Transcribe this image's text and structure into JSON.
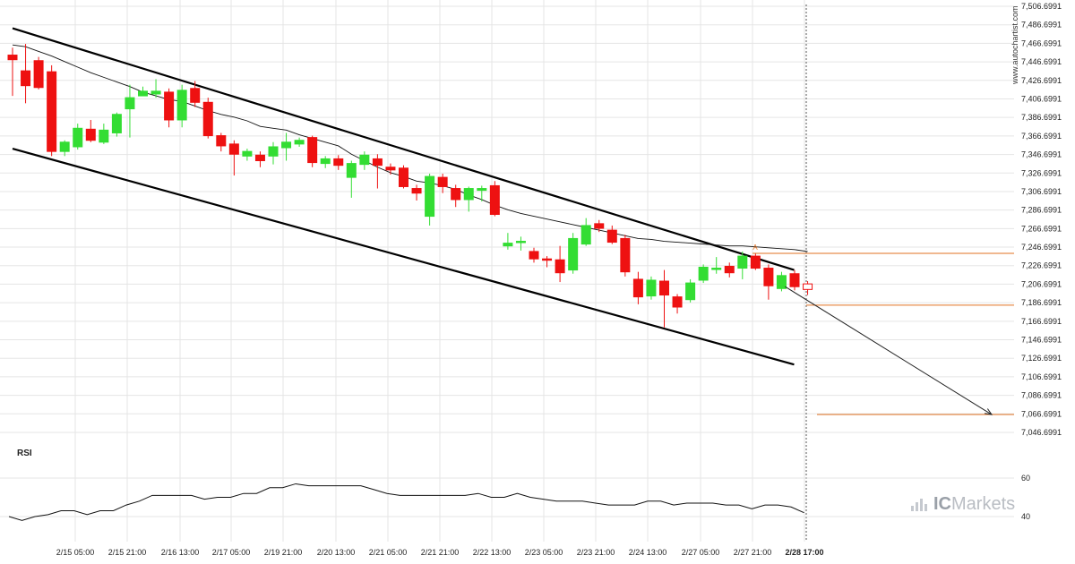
{
  "watermark": "www.autochartist.com",
  "brand": {
    "prefix": "IC",
    "suffix": "Markets"
  },
  "colors": {
    "up": "#33dd33",
    "down": "#ee1111",
    "line": "#000000",
    "level": "#e07020",
    "grid": "#e5e5e5"
  },
  "chart_data": {
    "type": "candlestick",
    "y_ticks": [
      "7,506.6991",
      "7,486.6991",
      "7,466.6991",
      "7,446.6991",
      "7,426.6991",
      "7,406.6991",
      "7,386.6991",
      "7,366.6991",
      "7,346.6991",
      "7,326.6991",
      "7,306.6991",
      "7,286.6991",
      "7,266.6991",
      "7,246.6991",
      "7,226.6991",
      "7,206.6991",
      "7,186.6991",
      "7,166.6991",
      "7,146.6991",
      "7,126.6991",
      "7,106.6991",
      "7,086.6991",
      "7,066.6991",
      "7,046.6991"
    ],
    "ylim": [
      7040,
      7510
    ],
    "x_ticks": [
      "2/15 05:00",
      "2/15 21:00",
      "2/16 13:00",
      "2/17 05:00",
      "2/19 21:00",
      "2/20 13:00",
      "2/21 05:00",
      "2/21 21:00",
      "2/22 13:00",
      "2/23 05:00",
      "2/23 21:00",
      "2/24 13:00",
      "2/27 05:00",
      "2/27 21:00",
      "2/28 17:00"
    ],
    "current_x_tick": "2/28 17:00",
    "candles": [
      [
        7454,
        7449,
        7462,
        7410
      ],
      [
        7437,
        7421,
        7466,
        7402
      ],
      [
        7448,
        7419,
        7452,
        7417
      ],
      [
        7436,
        7350,
        7443,
        7345
      ],
      [
        7350,
        7360,
        7362,
        7345
      ],
      [
        7355,
        7375,
        7380,
        7352
      ],
      [
        7374,
        7362,
        7384,
        7360
      ],
      [
        7360,
        7373,
        7380,
        7358
      ],
      [
        7370,
        7390,
        7392,
        7366
      ],
      [
        7396,
        7408,
        7422,
        7365
      ],
      [
        7410,
        7415,
        7420,
        7412
      ],
      [
        7412,
        7415,
        7428,
        7408
      ],
      [
        7414,
        7384,
        7418,
        7376
      ],
      [
        7384,
        7416,
        7422,
        7376
      ],
      [
        7418,
        7403,
        7426,
        7398
      ],
      [
        7403,
        7367,
        7408,
        7364
      ],
      [
        7367,
        7356,
        7370,
        7350
      ],
      [
        7358,
        7347,
        7362,
        7324
      ],
      [
        7345,
        7350,
        7353,
        7340
      ],
      [
        7346,
        7340,
        7350,
        7333
      ],
      [
        7345,
        7355,
        7360,
        7336
      ],
      [
        7354,
        7360,
        7370,
        7340
      ],
      [
        7358,
        7362,
        7365,
        7355
      ],
      [
        7365,
        7338,
        7367,
        7333
      ],
      [
        7337,
        7342,
        7345,
        7332
      ],
      [
        7342,
        7335,
        7346,
        7330
      ],
      [
        7322,
        7337,
        7340,
        7300
      ],
      [
        7336,
        7346,
        7350,
        7330
      ],
      [
        7342,
        7335,
        7347,
        7310
      ],
      [
        7333,
        7330,
        7337,
        7325
      ],
      [
        7332,
        7312,
        7335,
        7310
      ],
      [
        7310,
        7305,
        7314,
        7297
      ],
      [
        7280,
        7323,
        7326,
        7270
      ],
      [
        7322,
        7312,
        7326,
        7305
      ],
      [
        7310,
        7298,
        7314,
        7290
      ],
      [
        7298,
        7310,
        7312,
        7285
      ],
      [
        7308,
        7310,
        7313,
        7296
      ],
      [
        7313,
        7282,
        7318,
        7280
      ],
      [
        7248,
        7251,
        7262,
        7244
      ],
      [
        7252,
        7253,
        7258,
        7243
      ],
      [
        7242,
        7234,
        7246,
        7230
      ],
      [
        7234,
        7233,
        7237,
        7225
      ],
      [
        7233,
        7219,
        7248,
        7209
      ],
      [
        7222,
        7256,
        7262,
        7218
      ],
      [
        7250,
        7270,
        7278,
        7248
      ],
      [
        7272,
        7267,
        7276,
        7263
      ],
      [
        7265,
        7252,
        7270,
        7250
      ],
      [
        7256,
        7220,
        7260,
        7215
      ],
      [
        7212,
        7193,
        7220,
        7185
      ],
      [
        7194,
        7211,
        7215,
        7190
      ],
      [
        7210,
        7195,
        7222,
        7160
      ],
      [
        7193,
        7182,
        7196,
        7175
      ],
      [
        7190,
        7208,
        7212,
        7187
      ],
      [
        7211,
        7225,
        7228,
        7208
      ],
      [
        7224,
        7224,
        7236,
        7218
      ],
      [
        7226,
        7219,
        7230,
        7214
      ],
      [
        7224,
        7237,
        7242,
        7212
      ],
      [
        7237,
        7224,
        7240,
        7222
      ],
      [
        7224,
        7205,
        7228,
        7190
      ],
      [
        7202,
        7216,
        7220,
        7199
      ],
      [
        7218,
        7204,
        7222,
        7200
      ],
      [
        7207,
        7201,
        7210,
        7195
      ]
    ],
    "sma": [
      7465,
      7463,
      7458,
      7453,
      7447,
      7441,
      7435,
      7430,
      7425,
      7420,
      7414,
      7410,
      7406,
      7404,
      7399,
      7394,
      7390,
      7387,
      7383,
      7377,
      7375,
      7373,
      7368,
      7364,
      7360,
      7356,
      7347,
      7340,
      7333,
      7327,
      7323,
      7318,
      7316,
      7313,
      7309,
      7303,
      7298,
      7292,
      7287,
      7283,
      7280,
      7277,
      7274,
      7271,
      7268,
      7265,
      7262,
      7259,
      7256,
      7255,
      7253,
      7252,
      7251,
      7250,
      7249,
      7248,
      7248,
      7247,
      7246,
      7245,
      7244,
      7242
    ],
    "channel": {
      "upper": [
        [
          0,
          7483
        ],
        [
          59,
          7222
        ]
      ],
      "lower": [
        [
          0,
          7353
        ],
        [
          59,
          7120
        ]
      ]
    },
    "level_a": 7240,
    "level_current": 7184,
    "level_target": 7066,
    "pattern_point_label": "A",
    "forecast_arrow": {
      "from": [
        59,
        7204
      ],
      "to": [
        72,
        7066
      ]
    },
    "rsi": {
      "label": "RSI",
      "ticks": [
        60,
        40
      ],
      "ylim": [
        30,
        70
      ],
      "values": [
        40,
        38,
        40,
        41,
        43,
        43,
        41,
        43,
        43,
        46,
        48,
        51,
        51,
        51,
        51,
        49,
        50,
        50,
        52,
        52,
        55,
        55,
        57,
        56,
        56,
        56,
        56,
        56,
        54,
        52,
        51,
        51,
        51,
        51,
        51,
        51,
        52,
        50,
        50,
        52,
        50,
        49,
        48,
        48,
        48,
        47,
        46,
        46,
        46,
        48,
        48,
        46,
        47,
        47,
        47,
        46,
        46,
        44,
        46,
        46,
        45,
        42
      ]
    }
  }
}
